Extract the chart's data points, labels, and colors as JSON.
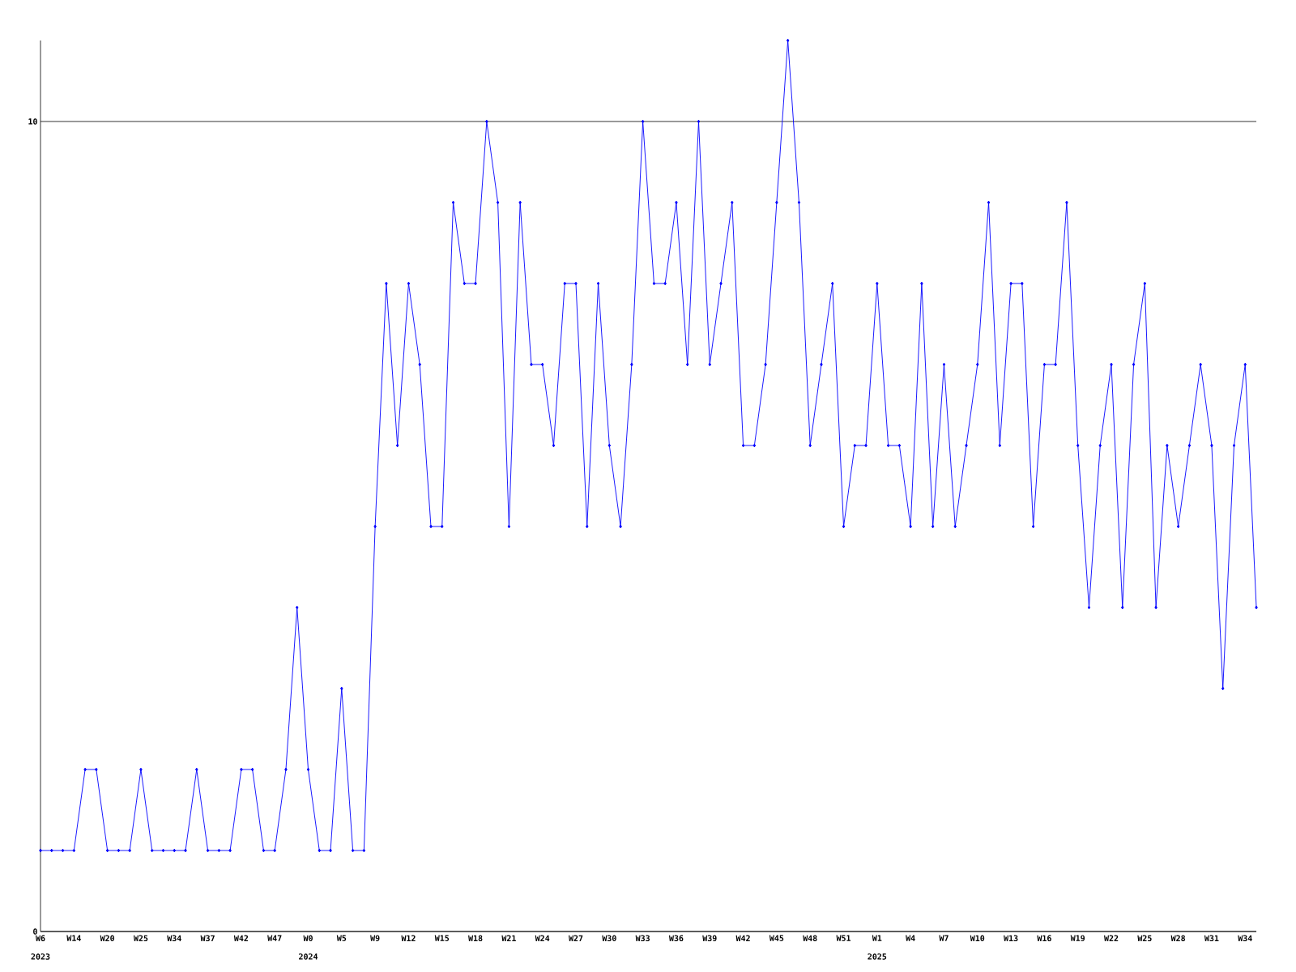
{
  "chart_data": {
    "type": "line",
    "categories": [
      "W6",
      null,
      null,
      "W14",
      null,
      null,
      "W20",
      null,
      null,
      "W25",
      null,
      null,
      "W34",
      null,
      null,
      "W37",
      null,
      null,
      "W42",
      null,
      null,
      "W47",
      null,
      null,
      "W0",
      null,
      null,
      "W5",
      null,
      null,
      "W9",
      null,
      null,
      "W12",
      null,
      null,
      "W15",
      null,
      null,
      "W18",
      null,
      null,
      "W21",
      null,
      null,
      "W24",
      null,
      null,
      "W27",
      null,
      null,
      "W30",
      null,
      null,
      "W33",
      null,
      null,
      "W36",
      null,
      null,
      "W39",
      null,
      null,
      "W42",
      null,
      null,
      "W45",
      null,
      null,
      "W48",
      null,
      null,
      "W51",
      null,
      null,
      "W1",
      null,
      null,
      "W4",
      null,
      null,
      "W7",
      null,
      null,
      "W10",
      null,
      null,
      "W13",
      null,
      null,
      "W16",
      null,
      null,
      "W19",
      null,
      null,
      "W22",
      null,
      null,
      "W25",
      null,
      null,
      "W28",
      null,
      null,
      "W31",
      null,
      null,
      "W34",
      null
    ],
    "values": [
      1,
      1,
      1,
      1,
      2,
      2,
      1,
      1,
      1,
      2,
      1,
      1,
      1,
      1,
      2,
      1,
      1,
      1,
      2,
      2,
      1,
      1,
      2,
      4,
      2,
      1,
      1,
      3,
      1,
      1,
      5,
      8,
      6,
      8,
      7,
      5,
      5,
      9,
      8,
      8,
      10,
      9,
      5,
      9,
      7,
      7,
      6,
      8,
      8,
      5,
      8,
      6,
      5,
      7,
      10,
      8,
      8,
      9,
      7,
      10,
      7,
      8,
      9,
      6,
      6,
      7,
      9,
      11,
      9,
      6,
      7,
      8,
      5,
      6,
      6,
      8,
      6,
      6,
      5,
      8,
      5,
      7,
      5,
      6,
      7,
      9,
      6,
      8,
      8,
      5,
      7,
      7,
      9,
      6,
      4,
      6,
      7,
      4,
      7,
      8,
      4,
      6,
      5,
      6,
      7,
      6,
      3,
      6,
      7,
      4
    ],
    "color": "#0000ff",
    "ylim": [
      0,
      11
    ],
    "yticks": [
      0,
      10
    ],
    "grid": "y",
    "marker": "diamond",
    "annotations": [
      "2023",
      "2024",
      "2025"
    ]
  }
}
